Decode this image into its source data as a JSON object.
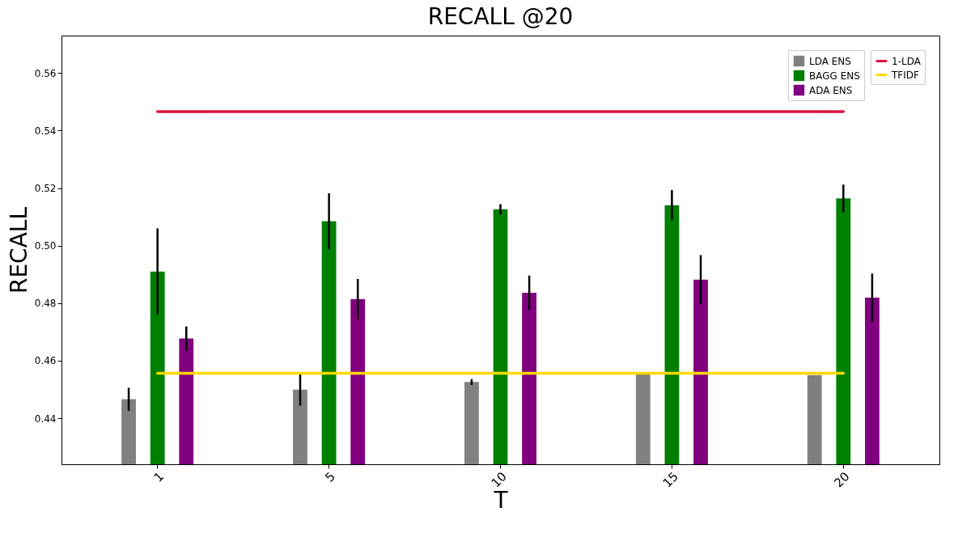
{
  "chart_data": {
    "type": "bar",
    "title": "RECALL @20",
    "xlabel": "T",
    "ylabel": "RECALL",
    "categories": [
      "1",
      "5",
      "10",
      "15",
      "20"
    ],
    "ylim": [
      0.424,
      0.573
    ],
    "yticks": [
      0.44,
      0.46,
      0.48,
      {
        "value": 0.5,
        "label": "0.50"
      },
      0.52,
      0.54,
      0.56
    ],
    "grid": false,
    "legend": "top right",
    "series": [
      {
        "name": "1-LDA",
        "type": "line",
        "color": "#dc143c",
        "values": [
          0.5466,
          0.5466,
          0.5466,
          0.5466,
          0.5466
        ]
      },
      {
        "name": "TFIDF",
        "type": "line",
        "color": "#ffd700",
        "values": [
          0.4556,
          0.4556,
          0.4556,
          0.4556,
          0.4556
        ]
      },
      {
        "name": "LDA ENS",
        "color": "#808080",
        "values": [
          0.4466,
          0.4499,
          0.4526,
          0.4553,
          0.455
        ],
        "errors": [
          0.004,
          0.0055,
          0.001,
          null,
          null
        ]
      },
      {
        "name": "BAGG ENS",
        "color": "#008000",
        "values": [
          0.491,
          0.5085,
          0.5126,
          0.514,
          0.5164
        ],
        "errors": [
          0.015,
          0.0097,
          0.0018,
          0.0053,
          0.0048
        ]
      },
      {
        "name": "ADA ENS",
        "color": "#800080",
        "values": [
          0.4677,
          0.4814,
          0.4836,
          0.4882,
          0.4819
        ],
        "errors": [
          0.0042,
          0.007,
          0.006,
          0.0085,
          0.0084
        ]
      }
    ]
  }
}
